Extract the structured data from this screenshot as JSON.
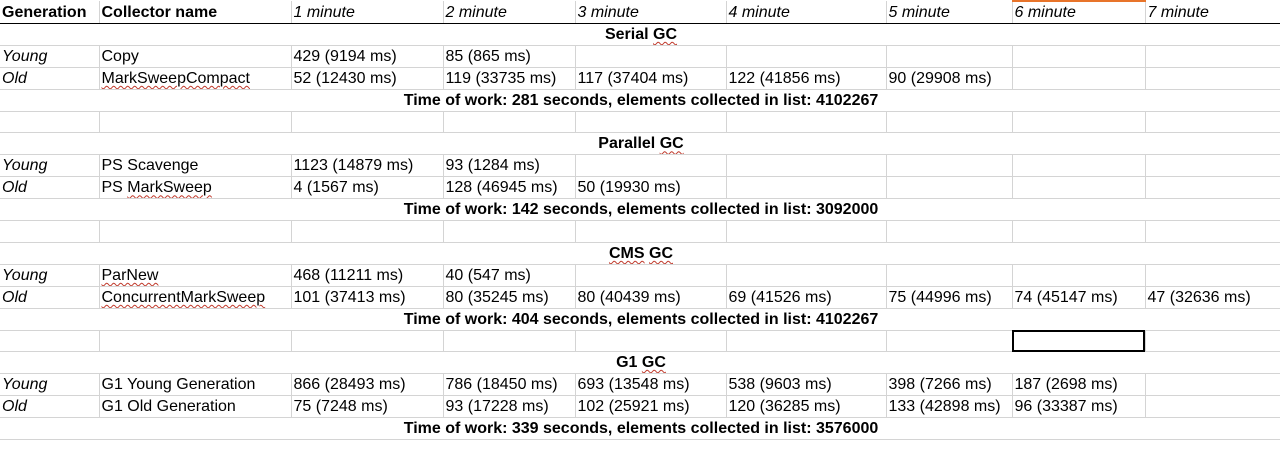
{
  "header": [
    "Generation",
    "Collector name",
    "1 minute",
    "2 minute",
    "3 minute",
    "4 minute",
    "5 minute",
    "6 minute",
    "7 minute"
  ],
  "sections": [
    {
      "title_a": "Serial",
      "title_b": "GC",
      "rows": [
        {
          "gen": "Young",
          "collector": "Copy",
          "values": [
            "429 (9194 ms)",
            "85 (865 ms)",
            "",
            "",
            "",
            "",
            ""
          ]
        },
        {
          "gen": "Old",
          "collector": "MarkSweepCompact",
          "values": [
            "52 (12430 ms)",
            "119 (33735 ms)",
            "117 (37404 ms)",
            "122 (41856 ms)",
            "90 (29908 ms)",
            "",
            ""
          ]
        }
      ],
      "summary": "Time of work: 281 seconds, elements collected in list: 4102267"
    },
    {
      "title_a": "Parallel",
      "title_b": "GC",
      "rows": [
        {
          "gen": "Young",
          "collector": "PS Scavenge",
          "values": [
            "1123 (14879 ms)",
            "93 (1284 ms)",
            "",
            "",
            "",
            "",
            ""
          ]
        },
        {
          "gen": "Old",
          "collector_a": "PS ",
          "collector_b": "MarkSweep",
          "values": [
            "4 (1567 ms)",
            "128 (46945 ms)",
            "50 (19930 ms)",
            "",
            "",
            "",
            ""
          ]
        }
      ],
      "summary": "Time of work: 142 seconds, elements collected in list: 3092000"
    },
    {
      "title_a": "CMS",
      "title_b": "GC",
      "rows": [
        {
          "gen": "Young",
          "collector": "ParNew",
          "values": [
            "468 (11211 ms)",
            "40 (547 ms)",
            "",
            "",
            "",
            "",
            ""
          ]
        },
        {
          "gen": "Old",
          "collector": "ConcurrentMarkSweep",
          "values": [
            "101 (37413 ms)",
            "80 (35245 ms)",
            "80 (40439 ms)",
            "69 (41526 ms)",
            "75 (44996 ms)",
            "74 (45147 ms)",
            "47 (32636 ms)"
          ]
        }
      ],
      "summary": "Time of work: 404 seconds, elements collected in list: 4102267"
    },
    {
      "title_a": "G1",
      "title_b": "GC",
      "rows": [
        {
          "gen": "Young",
          "collector": "G1 Young Generation",
          "values": [
            "866 (28493 ms)",
            "786 (18450 ms)",
            "693 (13548 ms)",
            "538 (9603 ms)",
            "398 (7266 ms)",
            "187 (2698 ms)",
            ""
          ]
        },
        {
          "gen": "Old",
          "collector": "G1 Old Generation",
          "values": [
            "75 (7248 ms)",
            "93 (17228 ms)",
            "102 (25921 ms)",
            "120 (36285 ms)",
            "133 (42898 ms)",
            "96 (33387 ms)",
            ""
          ]
        }
      ],
      "summary": "Time of work: 339 seconds, elements collected in list: 3576000"
    }
  ],
  "colors": {
    "accent": "#e8742a",
    "gridline": "#d4d4d4",
    "spellcheck": "#c0392b"
  }
}
